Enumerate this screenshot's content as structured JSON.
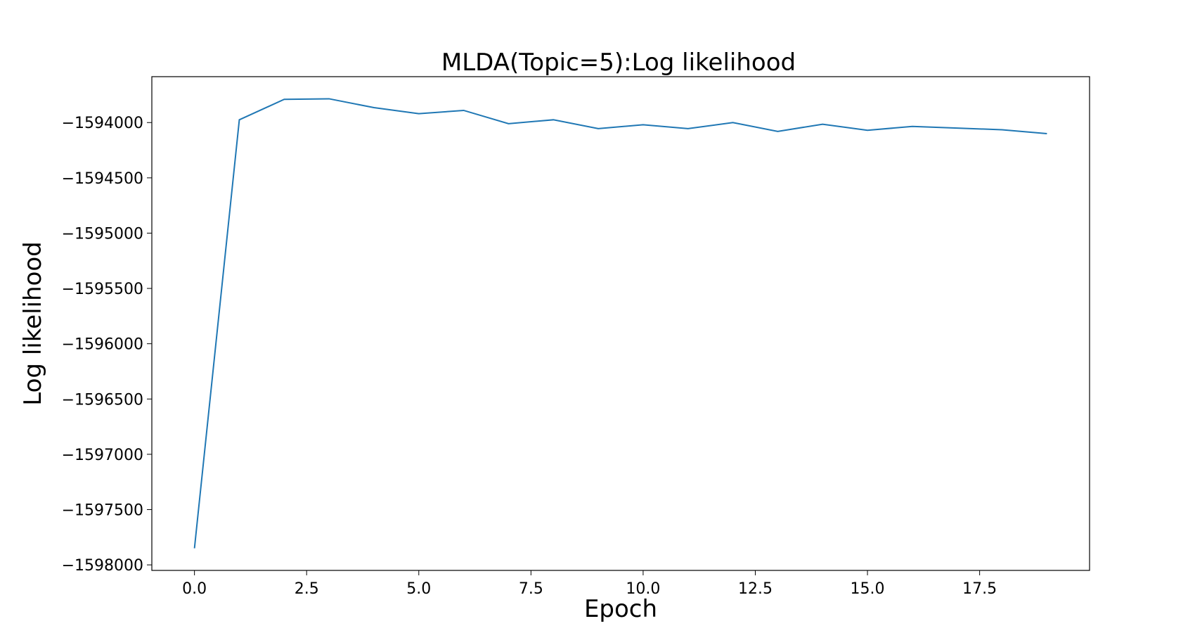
{
  "chart_data": {
    "type": "line",
    "title": "MLDA(Topic=5):Log likelihood",
    "xlabel": "Epoch",
    "ylabel": "Log likelihood",
    "xlim": [
      -0.95,
      19.95
    ],
    "ylim": [
      -1598050,
      -1593585
    ],
    "x_ticks": [
      0.0,
      2.5,
      5.0,
      7.5,
      10.0,
      12.5,
      15.0,
      17.5
    ],
    "x_tick_labels": [
      "0.0",
      "2.5",
      "5.0",
      "7.5",
      "10.0",
      "12.5",
      "15.0",
      "17.5"
    ],
    "y_ticks": [
      -1598000,
      -1597500,
      -1597000,
      -1596500,
      -1596000,
      -1595500,
      -1595000,
      -1594500,
      -1594000
    ],
    "y_tick_labels": [
      "−1598000",
      "−1597500",
      "−1597000",
      "−1596500",
      "−1596000",
      "−1595500",
      "−1595000",
      "−1594500",
      "−1594000"
    ],
    "grid": false,
    "series": [
      {
        "color": "#1f77b4",
        "x": [
          0,
          1,
          2,
          3,
          4,
          5,
          6,
          7,
          8,
          9,
          10,
          11,
          12,
          13,
          14,
          15,
          16,
          17,
          18,
          19
        ],
        "y": [
          -1597850,
          -1593975,
          -1593790,
          -1593785,
          -1593865,
          -1593920,
          -1593890,
          -1594010,
          -1593975,
          -1594055,
          -1594020,
          -1594055,
          -1594000,
          -1594080,
          -1594015,
          -1594070,
          -1594035,
          -1594050,
          -1594065,
          -1594100
        ]
      }
    ]
  }
}
